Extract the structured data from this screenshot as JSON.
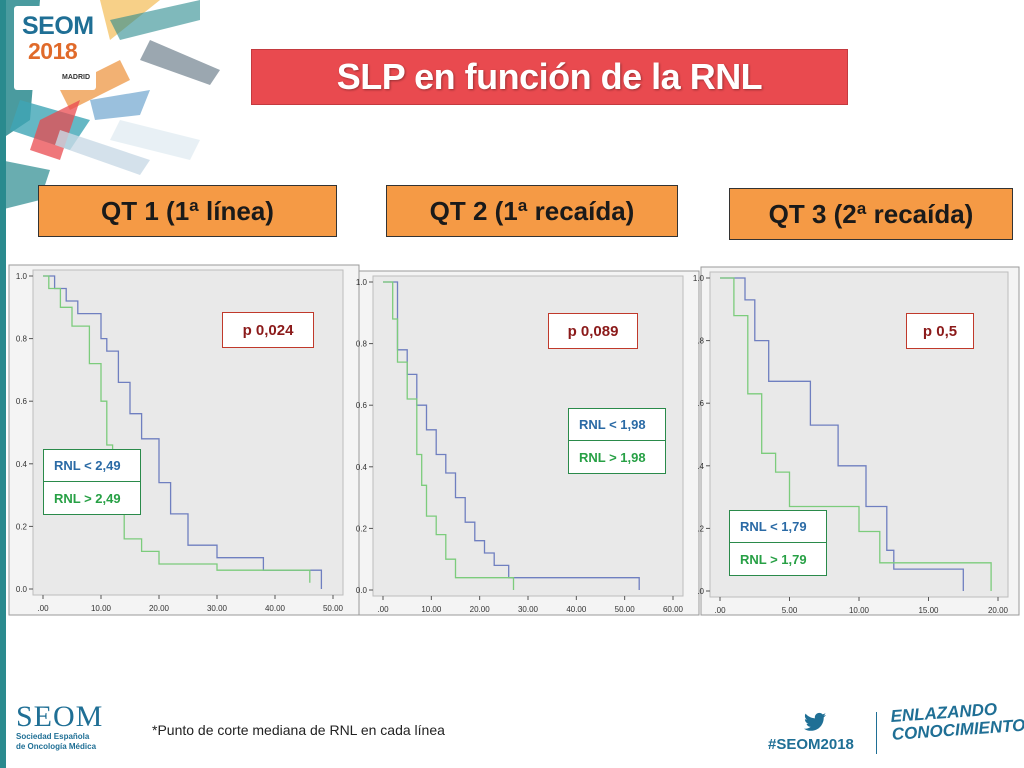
{
  "header": {
    "logo_name": "SEOM",
    "logo_year": "2018",
    "logo_city": "MADRID",
    "title": "SLP en función de la RNL"
  },
  "colors": {
    "title_bg": "#e94a4f",
    "panel_title_bg": "#f59a45",
    "series_low": "#6f7fc0",
    "series_high": "#7ccc7c",
    "pvalue_text": "#8b1a1a",
    "brand_blue": "#1f6f95"
  },
  "panels": [
    {
      "title": "QT 1 (1ª línea)",
      "p_value": "p 0,024",
      "legend": [
        "RNL < 2,49",
        "RNL > 2,49"
      ]
    },
    {
      "title": "QT 2 (1ª recaída)",
      "p_value": "p 0,089",
      "legend": [
        "RNL < 1,98",
        "RNL > 1,98"
      ]
    },
    {
      "title": "QT 3 (2ª recaída)",
      "p_value": "p 0,5",
      "legend": [
        "RNL < 1,79",
        "RNL > 1,79"
      ]
    }
  ],
  "chart_data": [
    {
      "type": "line",
      "title": "QT 1 (1ª línea)",
      "xlim": [
        0,
        50
      ],
      "ylim": [
        0,
        1
      ],
      "x_ticks": [
        ".00",
        "10.00",
        "20.00",
        "30.00",
        "40.00",
        "50.00"
      ],
      "y_ticks": [
        "0.0",
        "0.2",
        "0.4",
        "0.6",
        "0.8",
        "1.0"
      ],
      "series": [
        {
          "name": "RNL < 2,49",
          "color": "#6f7fc0",
          "points": [
            [
              0,
              1.0
            ],
            [
              2,
              1.0
            ],
            [
              2,
              0.96
            ],
            [
              4,
              0.96
            ],
            [
              4,
              0.92
            ],
            [
              6,
              0.92
            ],
            [
              6,
              0.88
            ],
            [
              10,
              0.88
            ],
            [
              10,
              0.8
            ],
            [
              11,
              0.8
            ],
            [
              11,
              0.76
            ],
            [
              13,
              0.76
            ],
            [
              13,
              0.66
            ],
            [
              15,
              0.66
            ],
            [
              15,
              0.56
            ],
            [
              17,
              0.56
            ],
            [
              17,
              0.48
            ],
            [
              20,
              0.48
            ],
            [
              20,
              0.34
            ],
            [
              22,
              0.34
            ],
            [
              22,
              0.24
            ],
            [
              25,
              0.24
            ],
            [
              25,
              0.14
            ],
            [
              30,
              0.14
            ],
            [
              30,
              0.1
            ],
            [
              38,
              0.1
            ],
            [
              38,
              0.06
            ],
            [
              48,
              0.06
            ],
            [
              48,
              0.0
            ]
          ]
        },
        {
          "name": "RNL > 2,49",
          "color": "#7ccc7c",
          "points": [
            [
              0,
              1.0
            ],
            [
              1,
              1.0
            ],
            [
              1,
              0.96
            ],
            [
              3,
              0.96
            ],
            [
              3,
              0.9
            ],
            [
              5,
              0.9
            ],
            [
              5,
              0.84
            ],
            [
              8,
              0.84
            ],
            [
              8,
              0.72
            ],
            [
              10,
              0.72
            ],
            [
              10,
              0.6
            ],
            [
              11,
              0.6
            ],
            [
              11,
              0.46
            ],
            [
              12,
              0.46
            ],
            [
              12,
              0.34
            ],
            [
              13,
              0.34
            ],
            [
              13,
              0.26
            ],
            [
              14,
              0.26
            ],
            [
              14,
              0.16
            ],
            [
              17,
              0.16
            ],
            [
              17,
              0.12
            ],
            [
              20,
              0.12
            ],
            [
              20,
              0.08
            ],
            [
              30,
              0.08
            ],
            [
              30,
              0.06
            ],
            [
              46,
              0.06
            ],
            [
              46,
              0.02
            ]
          ]
        }
      ]
    },
    {
      "type": "line",
      "title": "QT 2 (1ª recaída)",
      "xlim": [
        0,
        60
      ],
      "ylim": [
        0,
        1
      ],
      "x_ticks": [
        ".00",
        "10.00",
        "20.00",
        "30.00",
        "40.00",
        "50.00",
        "60.00"
      ],
      "y_ticks": [
        "0.0",
        "0.2",
        "0.4",
        "0.6",
        "0.8",
        "1.0"
      ],
      "series": [
        {
          "name": "RNL < 1,98",
          "color": "#6f7fc0",
          "points": [
            [
              0,
              1.0
            ],
            [
              3,
              1.0
            ],
            [
              3,
              0.78
            ],
            [
              5,
              0.78
            ],
            [
              5,
              0.7
            ],
            [
              7,
              0.7
            ],
            [
              7,
              0.6
            ],
            [
              9,
              0.6
            ],
            [
              9,
              0.52
            ],
            [
              11,
              0.52
            ],
            [
              11,
              0.44
            ],
            [
              13,
              0.44
            ],
            [
              13,
              0.38
            ],
            [
              15,
              0.38
            ],
            [
              15,
              0.3
            ],
            [
              17,
              0.3
            ],
            [
              17,
              0.22
            ],
            [
              19,
              0.22
            ],
            [
              19,
              0.16
            ],
            [
              21,
              0.16
            ],
            [
              21,
              0.12
            ],
            [
              23,
              0.12
            ],
            [
              23,
              0.08
            ],
            [
              26,
              0.08
            ],
            [
              26,
              0.04
            ],
            [
              53,
              0.04
            ],
            [
              53,
              0.0
            ]
          ]
        },
        {
          "name": "RNL > 1,98",
          "color": "#7ccc7c",
          "points": [
            [
              0,
              1.0
            ],
            [
              2,
              1.0
            ],
            [
              2,
              0.88
            ],
            [
              3,
              0.88
            ],
            [
              3,
              0.74
            ],
            [
              5,
              0.74
            ],
            [
              5,
              0.62
            ],
            [
              7,
              0.62
            ],
            [
              7,
              0.44
            ],
            [
              8,
              0.44
            ],
            [
              8,
              0.34
            ],
            [
              9,
              0.34
            ],
            [
              9,
              0.24
            ],
            [
              11,
              0.24
            ],
            [
              11,
              0.18
            ],
            [
              13,
              0.18
            ],
            [
              13,
              0.1
            ],
            [
              15,
              0.1
            ],
            [
              15,
              0.04
            ],
            [
              27,
              0.04
            ],
            [
              27,
              0.0
            ]
          ]
        }
      ]
    },
    {
      "type": "line",
      "title": "QT 3 (2ª recaída)",
      "xlim": [
        0,
        20
      ],
      "ylim": [
        0,
        1
      ],
      "x_ticks": [
        ".00",
        "5.00",
        "10.00",
        "15.00",
        "20.00"
      ],
      "y_ticks": [
        ".0",
        ".2",
        ".4",
        ".6",
        ".8",
        "1.0"
      ],
      "series": [
        {
          "name": "RNL < 1,79",
          "color": "#6f7fc0",
          "points": [
            [
              0,
              1.0
            ],
            [
              1.8,
              1.0
            ],
            [
              1.8,
              0.93
            ],
            [
              2.5,
              0.93
            ],
            [
              2.5,
              0.8
            ],
            [
              3.5,
              0.8
            ],
            [
              3.5,
              0.67
            ],
            [
              6.5,
              0.67
            ],
            [
              6.5,
              0.53
            ],
            [
              8.5,
              0.53
            ],
            [
              8.5,
              0.4
            ],
            [
              10.5,
              0.4
            ],
            [
              10.5,
              0.27
            ],
            [
              12,
              0.27
            ],
            [
              12,
              0.13
            ],
            [
              12.5,
              0.13
            ],
            [
              12.5,
              0.07
            ],
            [
              17.5,
              0.07
            ],
            [
              17.5,
              0.0
            ]
          ]
        },
        {
          "name": "RNL > 1,79",
          "color": "#7ccc7c",
          "points": [
            [
              0,
              1.0
            ],
            [
              1,
              1.0
            ],
            [
              1,
              0.88
            ],
            [
              2,
              0.88
            ],
            [
              2,
              0.63
            ],
            [
              3,
              0.63
            ],
            [
              3,
              0.44
            ],
            [
              4,
              0.44
            ],
            [
              4,
              0.38
            ],
            [
              5,
              0.38
            ],
            [
              5,
              0.27
            ],
            [
              10,
              0.27
            ],
            [
              10,
              0.19
            ],
            [
              11.5,
              0.19
            ],
            [
              11.5,
              0.09
            ],
            [
              19.5,
              0.09
            ],
            [
              19.5,
              0.0
            ]
          ]
        }
      ]
    }
  ],
  "footnote": "*Punto de corte mediana de RNL en cada línea",
  "footer": {
    "seom": "SEOM",
    "seom_sub1": "Sociedad Española",
    "seom_sub2": "de Oncología Médica",
    "hashtag": "#SEOM2018",
    "slogan_line1": "ENLAZANDO",
    "slogan_line2": "CONOCIMIENTO"
  }
}
